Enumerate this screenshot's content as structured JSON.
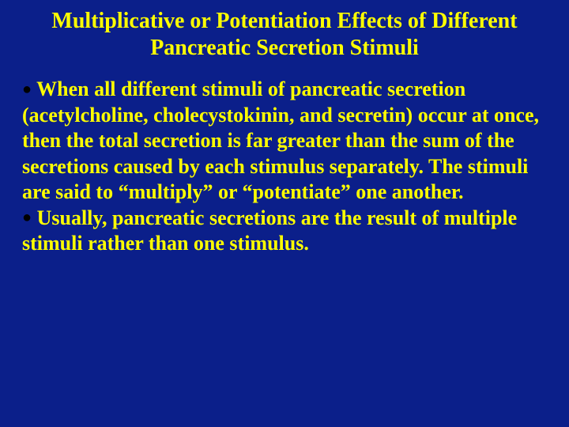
{
  "colors": {
    "background": "#0b1f8a",
    "title": "#ffff00",
    "body": "#ffff00",
    "bullet": "#000000"
  },
  "title": "Multiplicative or Potentiation Effects of Different Pancreatic Secretion Stimuli",
  "bullets": [
    "When all different stimuli of pancreatic secretion (acetylcholine, cholecystokinin, and secretin) occur at once, then the total secretion is far greater than the sum of the secretions caused by each stimulus separately. The stimuli are said to “multiply” or “potentiate” one another.",
    "Usually, pancreatic secretions are the result of multiple stimuli rather than one stimulus."
  ],
  "bullet_marker": "●"
}
